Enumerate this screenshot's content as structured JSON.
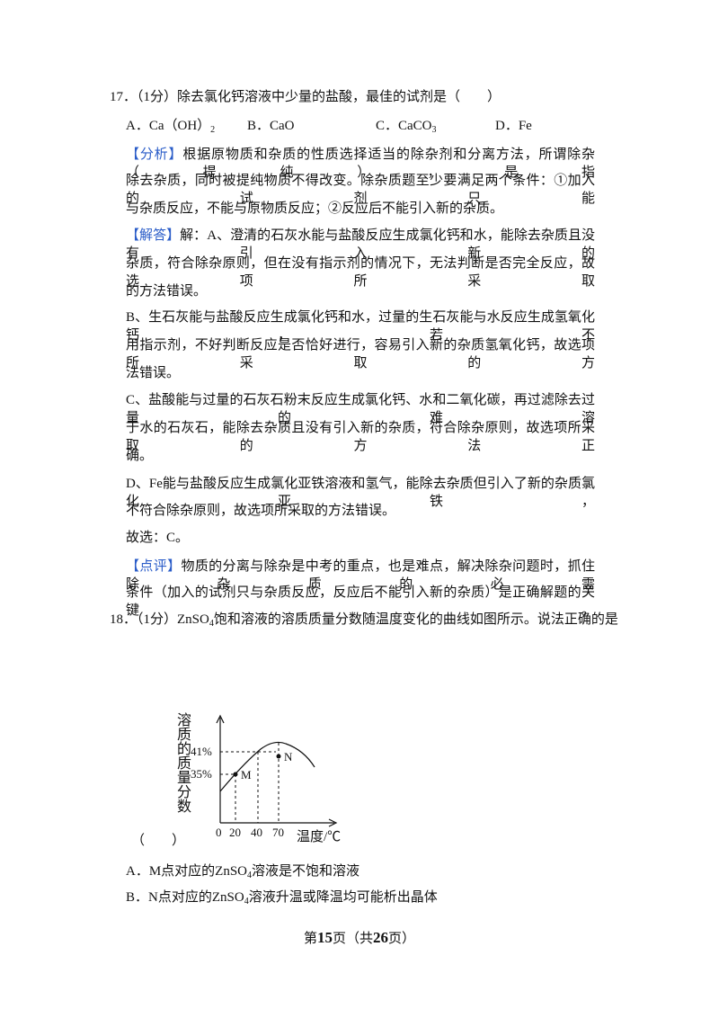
{
  "q17": {
    "stem": "17．（1分）除去氯化钙溶液中少量的盐酸，最佳的试剂是（　　）",
    "options": [
      [
        "A．Ca（OH）",
        {
          "sub": "2"
        }
      ],
      [
        "B．CaO"
      ],
      [
        "C．CaCO",
        {
          "sub": "3"
        }
      ],
      [
        "D．Fe"
      ]
    ],
    "analysis": {
      "tag": "【分析】",
      "lines": [
        "根据原物质和杂质的性质选择适当的除杂剂和分离方法，所谓除杂（提纯），是指",
        "除去杂质，同时被提纯物质不得改变。除杂质题至少要满足两个条件：①加入的试剂只能",
        "与杂质反应，不能与原物质反应；②反应后不能引入新的杂质。"
      ]
    },
    "solution": {
      "tag": "【解答】",
      "lines": [
        "解：A、澄清的石灰水能与盐酸反应生成氯化钙和水，能除去杂质且没有引入新的",
        "杂质，符合除杂原则，但在没有指示剂的情况下，无法判断是否完全反应，故选项所采取",
        "的方法错误。",
        "B、生石灰能与盐酸反应生成氯化钙和水，过量的生石灰能与水反应生成氢氧化钙，若不",
        "用指示剂，不好判断反应是否恰好进行，容易引入新的杂质氢氧化钙，故选项所采取的方",
        "法错误。",
        "C、盐酸能与过量的石灰石粉末反应生成氯化钙、水和二氧化碳，再过滤除去过量的难溶",
        "于水的石灰石，能除去杂质且没有引入新的杂质，符合除杂原则，故选项所采取的方法正",
        "确。",
        "D、Fe能与盐酸反应生成氯化亚铁溶液和氢气，能除去杂质但引入了新的杂质氯化亚铁，",
        "不符合除杂原则，故选项所采取的方法错误。",
        "故选：C。"
      ]
    },
    "comment": {
      "tag": "【点评】",
      "lines": [
        "物质的分离与除杂是中考的重点，也是难点，解决除杂问题时，抓住除杂质的必需",
        "条件（加入的试剂只与杂质反应，反应后不能引入新的杂质）是正确解题的关键。"
      ]
    }
  },
  "q18": {
    "stem": [
      "18．（1分）ZnSO",
      {
        "sub": "4"
      },
      "饱和溶液的溶质质量分数随温度变化的曲线如图所示。说法正确的是"
    ],
    "figure": {
      "y_label": "溶质的质量分数",
      "y_ticks": [
        "41%",
        "35%"
      ],
      "x_ticks": [
        "0",
        "20",
        "40",
        "70"
      ],
      "x_label": "温度/℃",
      "points": [
        "M",
        "N"
      ]
    },
    "blank": "（　　）",
    "options": [
      [
        "A．M点对应的ZnSO",
        {
          "sub": "4"
        },
        "溶液是不饱和溶液"
      ],
      [
        "B．N点对应的ZnSO",
        {
          "sub": "4"
        },
        "溶液升温或降温均可能析出晶体"
      ]
    ]
  },
  "footer": [
    "第",
    {
      "bold": "15"
    },
    "页（共",
    {
      "bold": "26"
    },
    "页）"
  ]
}
